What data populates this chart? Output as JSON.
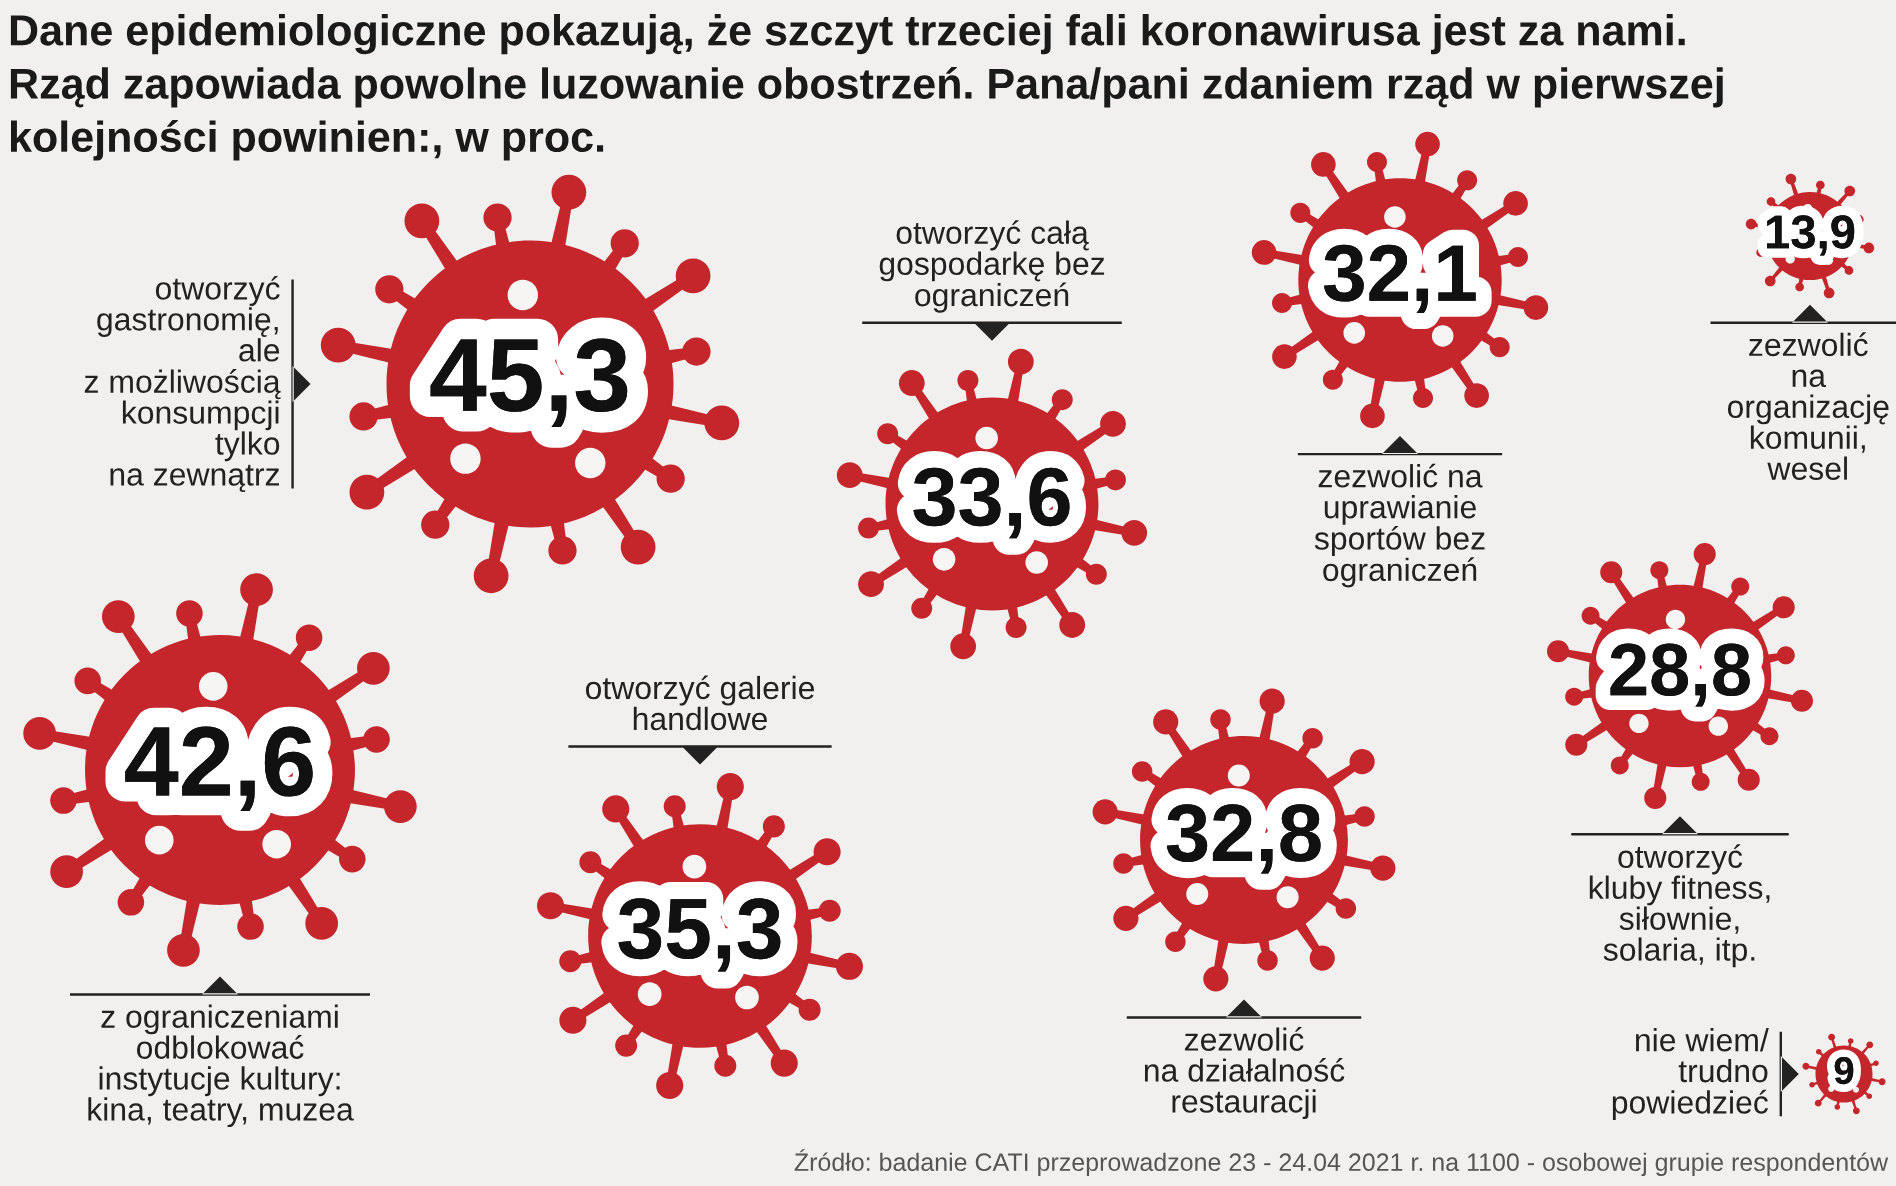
{
  "chart_data": {
    "type": "other",
    "title": "Dane epidemiologiczne pokazują, że szczyt trzeciej fali koronawirusa jest za nami.\nRząd zapowiada powolne luzowanie obostrzeń. Pana/pani zdaniem rząd w pierwszej\nkolejności powinien:, w proc.",
    "categories": [
      "otworzyć\ngastronomię,\nale\nz możliwością\nkonsumpcji\ntylko\nna zewnątrz",
      "otworzyć całą\ngospodarkę bez\nograniczeń",
      "zezwolić na\nuprawianie\nsportów bez\nograniczeń",
      "zezwolić\nna\norganizację\nkomunii,\nwesel",
      "z ograniczeniami\nodblokować\ninstytucje kultury:\nkina, teatry, muzea",
      "otworzyć galerie\nhandlowe",
      "zezwolić\nna działalność\nrestauracji",
      "otworzyć\nkluby fitness,\nsiłownie,\nsolaria, itp.",
      "nie wiem/\ntrudno\npowiedzieć"
    ],
    "values": [
      45.3,
      33.6,
      32.1,
      13.9,
      42.6,
      35.3,
      32.8,
      28.8,
      9
    ],
    "value_labels": [
      "45,3",
      "33,6",
      "32,1",
      "13,9",
      "42,6",
      "35,3",
      "32,8",
      "28,8",
      "9"
    ],
    "color": "#c4262c",
    "annotations": [
      "Źródło: badanie CATI przeprowadzone 23 - 24.04 2021 r. na 1100 - osobowej grupie respondentów"
    ]
  }
}
